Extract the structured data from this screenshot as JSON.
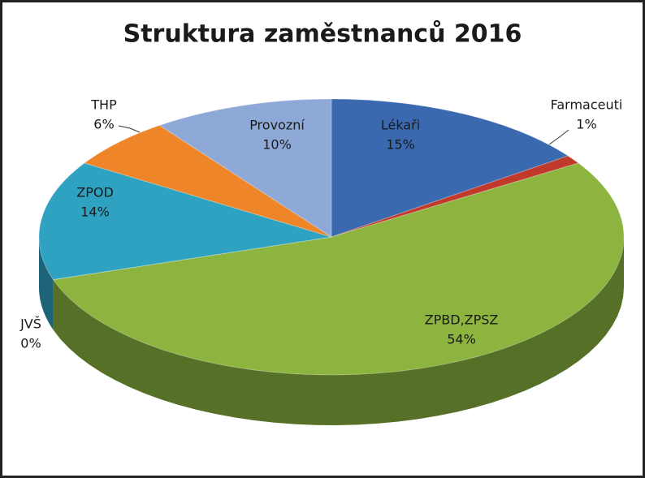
{
  "chart_data": {
    "type": "pie",
    "title": "Struktura zaměstnanců 2016",
    "categories": [
      "Lékaři",
      "Farmaceuti",
      "ZPBD,ZPSZ",
      "JVŠ",
      "ZPOD",
      "THP",
      "Provozní"
    ],
    "values": [
      15,
      1,
      54,
      0,
      14,
      6,
      10
    ],
    "value_labels": [
      "15%",
      "1%",
      "54%",
      "0%",
      "14%",
      "6%",
      "10%"
    ],
    "colors": [
      "#3a69b0",
      "#c0392b",
      "#8cb43f",
      "#6a4d91",
      "#2fa2c2",
      "#ee8528",
      "#8ea8d8"
    ]
  }
}
